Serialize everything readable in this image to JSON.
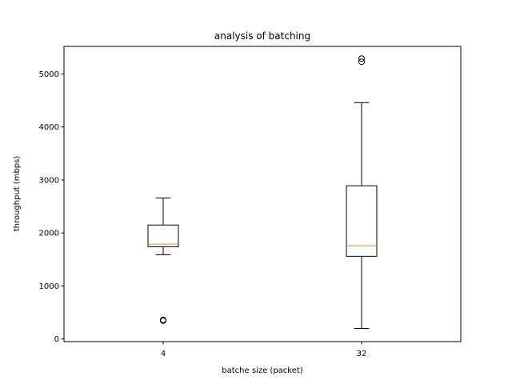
{
  "chart_data": {
    "type": "box",
    "title": "analysis of batching",
    "xlabel": "batche size (packet)",
    "ylabel": "throughput (mbps)",
    "categories": [
      "4",
      "32"
    ],
    "ylim": [
      -50,
      5520
    ],
    "yticks": [
      0,
      1000,
      2000,
      3000,
      4000,
      5000
    ],
    "boxes": [
      {
        "category": "4",
        "whisker_low": 1590,
        "q1": 1740,
        "median": 1790,
        "q3": 2150,
        "whisker_high": 2660,
        "outliers": [
          345,
          360
        ]
      },
      {
        "category": "32",
        "whisker_low": 200,
        "q1": 1560,
        "median": 1760,
        "q3": 2890,
        "whisker_high": 4460,
        "outliers": [
          5230,
          5290
        ]
      }
    ],
    "colors": {
      "box": "#000000",
      "median": "#ff7f0e",
      "background": "#ffffff"
    },
    "grid": false,
    "legend": "none"
  }
}
